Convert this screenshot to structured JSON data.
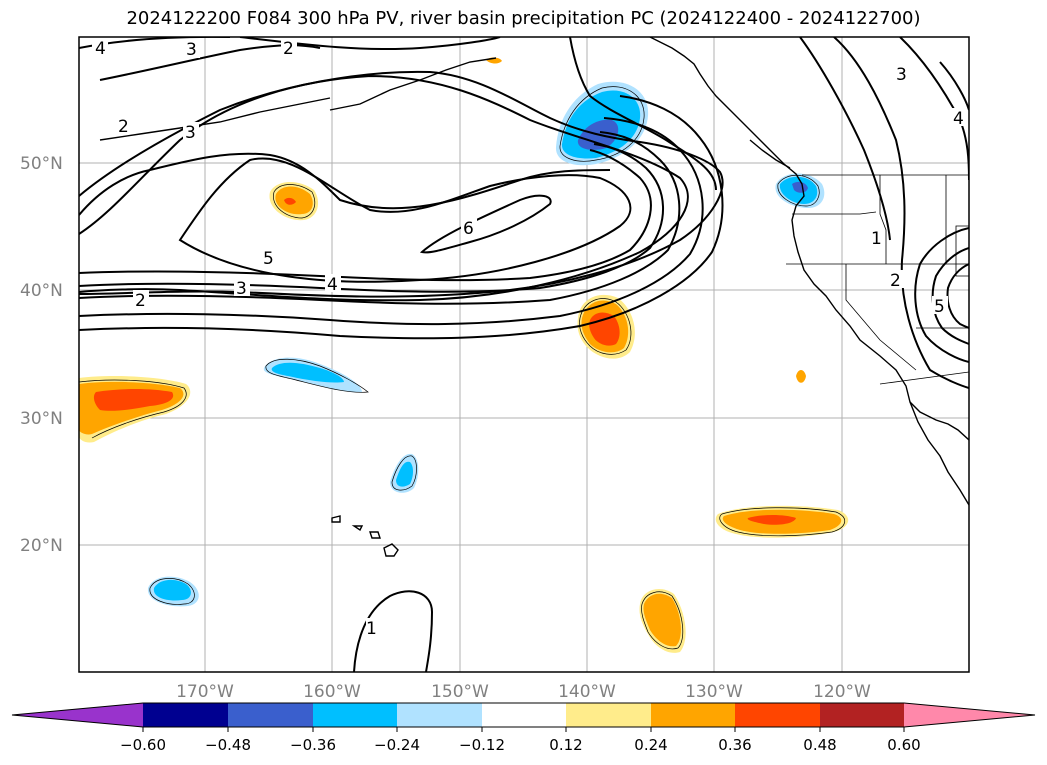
{
  "title": "2024122200 F084 300 hPa PV, river basin precipitation PC (2024122400 - 2024122700)",
  "lat_labels": [
    "50°N",
    "40°N",
    "30°N",
    "20°N"
  ],
  "lon_labels": [
    "170°W",
    "160°W",
    "150°W",
    "140°W",
    "130°W",
    "120°W"
  ],
  "contour_labels": [
    "4",
    "3",
    "2",
    "2",
    "3",
    "6",
    "5",
    "4",
    "3",
    "2",
    "1",
    "2",
    "5",
    "3",
    "4",
    "1"
  ],
  "colorbar": {
    "tick_labels": [
      "−0.60",
      "−0.48",
      "−0.36",
      "−0.24",
      "−0.12",
      "0.12",
      "0.24",
      "0.36",
      "0.48",
      "0.60"
    ],
    "colors": [
      "#9933cc",
      "#000090",
      "#3a5fcd",
      "#00bfff",
      "#b0e2ff",
      "#ffffff",
      "#ffec8b",
      "#ffa500",
      "#ff4500",
      "#b22222",
      "#ff88aa"
    ]
  },
  "shading_colors": {
    "light_blue": "#b0e2ff",
    "blue": "#00bfff",
    "royal_blue": "#3a5fcd",
    "light_yellow": "#ffec8b",
    "orange": "#ffa500",
    "red_orange": "#ff4500"
  }
}
